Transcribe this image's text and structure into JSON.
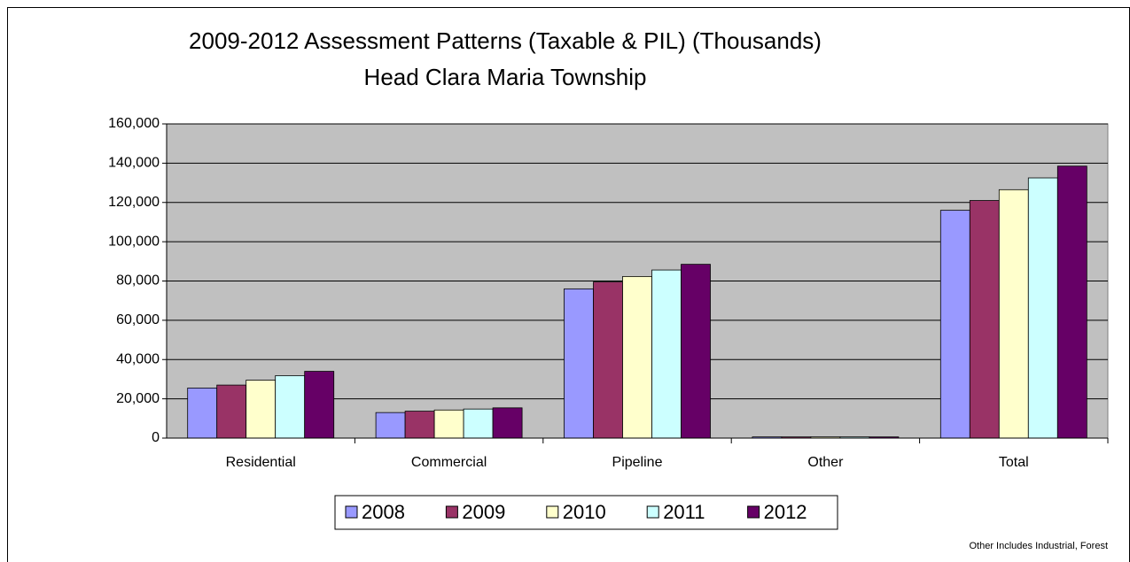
{
  "chart_data": {
    "type": "bar",
    "title": "2009-2012 Assessment Patterns (Taxable & PIL) (Thousands)",
    "subtitle": "Head Clara Maria Township",
    "note": "Other Includes Industrial, Forest",
    "categories": [
      "Residential",
      "Commercial",
      "Pipeline",
      "Other",
      "Total"
    ],
    "series": [
      {
        "name": "2008",
        "color": "#9999ff",
        "values": [
          25500,
          13000,
          76000,
          600,
          116000
        ]
      },
      {
        "name": "2009",
        "color": "#993366",
        "values": [
          27000,
          13700,
          79500,
          600,
          121000
        ]
      },
      {
        "name": "2010",
        "color": "#ffffcc",
        "values": [
          29500,
          14300,
          82300,
          600,
          126500
        ]
      },
      {
        "name": "2011",
        "color": "#ccffff",
        "values": [
          31800,
          14800,
          85600,
          600,
          132500
        ]
      },
      {
        "name": "2012",
        "color": "#660066",
        "values": [
          34000,
          15400,
          88500,
          600,
          138500
        ]
      }
    ],
    "ylim": [
      0,
      160000
    ],
    "yticks": [
      0,
      {
        "value": 20000,
        "label": "20,000"
      },
      {
        "value": 40000,
        "label": "40,000"
      },
      {
        "value": 60000,
        "label": "60,000"
      },
      {
        "value": 80000,
        "label": "80,000"
      },
      {
        "value": 100000,
        "label": "100,000"
      },
      {
        "value": 120000,
        "label": "120,000"
      },
      {
        "value": 140000,
        "label": "140,000"
      },
      {
        "value": 160000,
        "label": "160,000"
      }
    ],
    "grid": true,
    "legend": "bottom"
  }
}
